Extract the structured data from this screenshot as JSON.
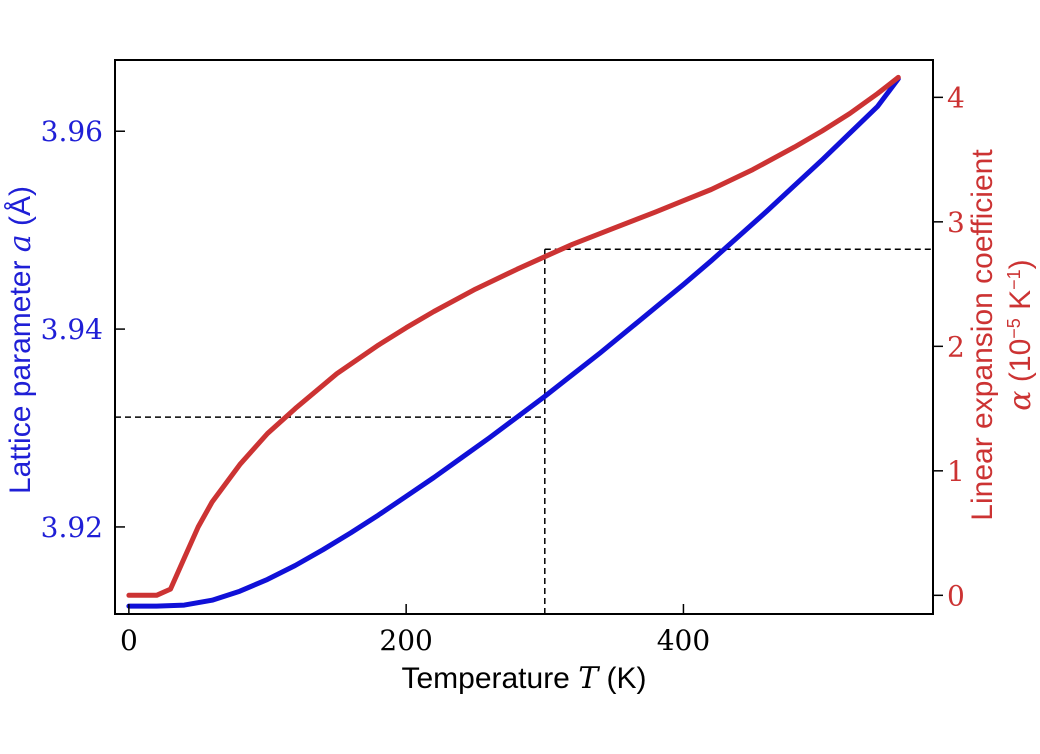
{
  "chart_data": {
    "type": "line",
    "title": "",
    "xlabel": {
      "text": "Temperature ",
      "symbol": "T",
      "unit": " (K)"
    },
    "ylabel_left": {
      "text": "Lattice parameter ",
      "symbol": "a",
      "unit": " (Å)"
    },
    "ylabel_right": {
      "line1": "Linear expansion coefficient",
      "symbol": "α",
      "unit_open": " (10",
      "unit_exp": "−5",
      "unit_k": " K",
      "unit_kexp": "−1",
      "unit_close": ")"
    },
    "xlim": [
      -10,
      580
    ],
    "ylim_left": [
      3.9112,
      3.9672
    ],
    "ylim_right": [
      -0.15,
      4.3
    ],
    "x_ticks": [
      0,
      200,
      400
    ],
    "x_tick_labels": [
      "0",
      "200",
      "400"
    ],
    "y_left_ticks": [
      3.92,
      3.94,
      3.96
    ],
    "y_left_tick_labels": [
      "3.92",
      "3.94",
      "3.96"
    ],
    "y_right_ticks": [
      0,
      1,
      2,
      3,
      4
    ],
    "y_right_tick_labels": [
      "0",
      "1",
      "2",
      "3",
      "4"
    ],
    "grid": false,
    "colors": {
      "left_axis": "#1f1fd6",
      "right_axis": "#cc3333",
      "frame": "#000000"
    },
    "series": [
      {
        "axis": "left",
        "color": "#1010d8",
        "x": [
          0,
          20,
          40,
          60,
          80,
          100,
          120,
          140,
          160,
          180,
          200,
          220,
          240,
          260,
          280,
          300,
          320,
          340,
          360,
          380,
          400,
          420,
          440,
          460,
          480,
          500,
          520,
          540,
          555
        ],
        "y": [
          3.912,
          3.912,
          3.9121,
          3.9126,
          3.9135,
          3.9147,
          3.9161,
          3.9177,
          3.9194,
          3.9212,
          3.9231,
          3.925,
          3.927,
          3.929,
          3.9311,
          3.9332,
          3.9354,
          3.9376,
          3.9399,
          3.9422,
          3.9445,
          3.9469,
          3.9494,
          3.9519,
          3.9545,
          3.9571,
          3.9598,
          3.9625,
          3.9653
        ]
      },
      {
        "axis": "right",
        "color": "#cc3333",
        "x": [
          0,
          20,
          30,
          40,
          50,
          60,
          80,
          100,
          120,
          150,
          180,
          200,
          220,
          250,
          280,
          300,
          320,
          350,
          380,
          400,
          420,
          450,
          480,
          500,
          520,
          540,
          555
        ],
        "y": [
          0,
          0,
          0.05,
          0.3,
          0.55,
          0.75,
          1.05,
          1.3,
          1.5,
          1.78,
          2.01,
          2.15,
          2.28,
          2.46,
          2.62,
          2.72,
          2.82,
          2.95,
          3.08,
          3.17,
          3.26,
          3.42,
          3.6,
          3.73,
          3.87,
          4.03,
          4.16
        ]
      }
    ],
    "reference_lines": [
      {
        "type": "vertical",
        "x": 300,
        "y_from_left": 3.9112,
        "y_to_right": 2.78
      },
      {
        "type": "horizontal",
        "axis": "left",
        "y": 3.9311,
        "x_from": -10,
        "x_to": 300
      },
      {
        "type": "horizontal",
        "axis": "right",
        "y": 2.78,
        "x_from": 300,
        "x_to": 580
      }
    ]
  }
}
